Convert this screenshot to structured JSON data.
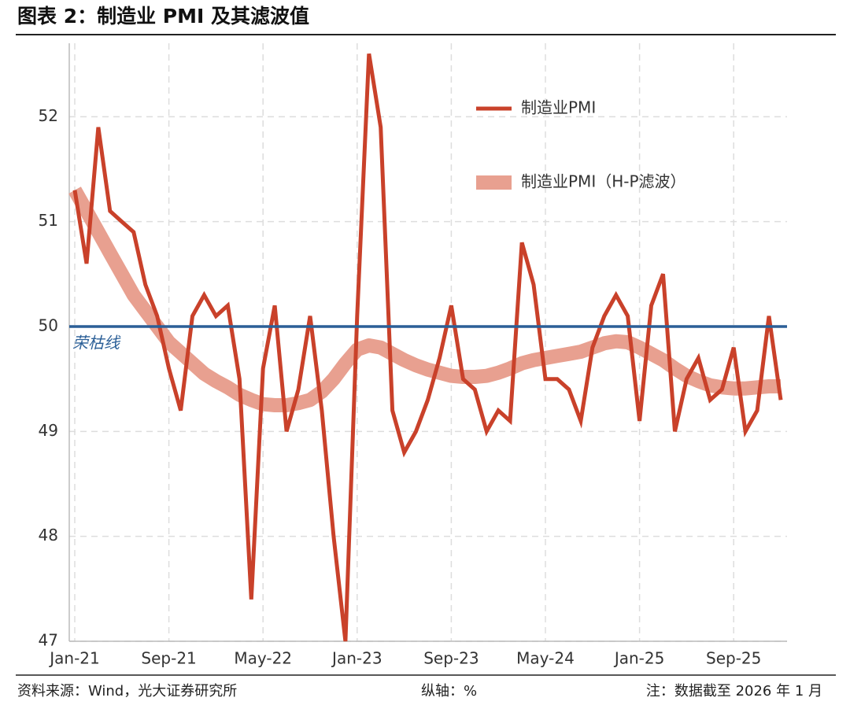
{
  "chart_data": {
    "type": "line",
    "title": "图表 2：制造业 PMI 及其滤波值",
    "categories": [
      "Jan-21",
      null,
      null,
      null,
      null,
      null,
      null,
      null,
      "Sep-21",
      null,
      null,
      null,
      null,
      null,
      null,
      null,
      "May-22",
      null,
      null,
      null,
      null,
      null,
      null,
      null,
      "Jan-23",
      null,
      null,
      null,
      null,
      null,
      null,
      null,
      "Sep-23",
      null,
      null,
      null,
      null,
      null,
      null,
      null,
      "May-24",
      null,
      null,
      null,
      null,
      null,
      null,
      null,
      "Jan-25",
      null,
      null,
      null,
      null,
      null,
      null,
      null,
      "Sep-25",
      null,
      null,
      null,
      null
    ],
    "series": [
      {
        "name": "制造业PMI",
        "color": "#c9412a",
        "values": [
          51.3,
          50.6,
          51.9,
          51.1,
          51.0,
          50.9,
          50.4,
          50.1,
          49.6,
          49.2,
          50.1,
          50.3,
          50.1,
          50.2,
          49.5,
          47.4,
          49.6,
          50.2,
          49.0,
          49.4,
          50.1,
          49.2,
          48.0,
          47.0,
          50.1,
          52.6,
          51.9,
          49.2,
          48.8,
          49.0,
          49.3,
          49.7,
          50.2,
          49.5,
          49.4,
          49.0,
          49.2,
          49.1,
          50.8,
          50.4,
          49.5,
          49.5,
          49.4,
          49.1,
          49.8,
          50.1,
          50.3,
          50.1,
          49.1,
          50.2,
          50.5,
          49.0,
          49.5,
          49.7,
          49.3,
          49.4,
          49.8,
          49.0,
          49.2,
          50.1,
          49.3
        ]
      },
      {
        "name": "制造业PMI（H-P滤波）",
        "color": "#e8a090",
        "values": [
          51.3,
          51.1,
          50.9,
          50.7,
          50.5,
          50.3,
          50.15,
          50.0,
          49.85,
          49.75,
          49.65,
          49.55,
          49.48,
          49.42,
          49.35,
          49.3,
          49.26,
          49.25,
          49.25,
          49.27,
          49.3,
          49.38,
          49.5,
          49.65,
          49.78,
          49.82,
          49.8,
          49.74,
          49.68,
          49.63,
          49.59,
          49.56,
          49.53,
          49.52,
          49.52,
          49.53,
          49.56,
          49.6,
          49.65,
          49.68,
          49.7,
          49.72,
          49.74,
          49.76,
          49.8,
          49.84,
          49.86,
          49.85,
          49.8,
          49.74,
          49.68,
          49.6,
          49.53,
          49.48,
          49.44,
          49.42,
          49.41,
          49.41,
          49.42,
          49.43,
          49.43
        ]
      }
    ],
    "ylim": [
      47,
      52.7
    ],
    "yticks": [
      47,
      48,
      49,
      50,
      51,
      52
    ],
    "grid": true,
    "legend": "upper right",
    "reference_line": {
      "value": 50,
      "label": "荣枯线",
      "color": "#2b5f97"
    },
    "source": "资料来源：Wind，光大证券研究所",
    "axis_note": "纵轴：%",
    "note": "注：数据截至 2026 年 1 月"
  }
}
